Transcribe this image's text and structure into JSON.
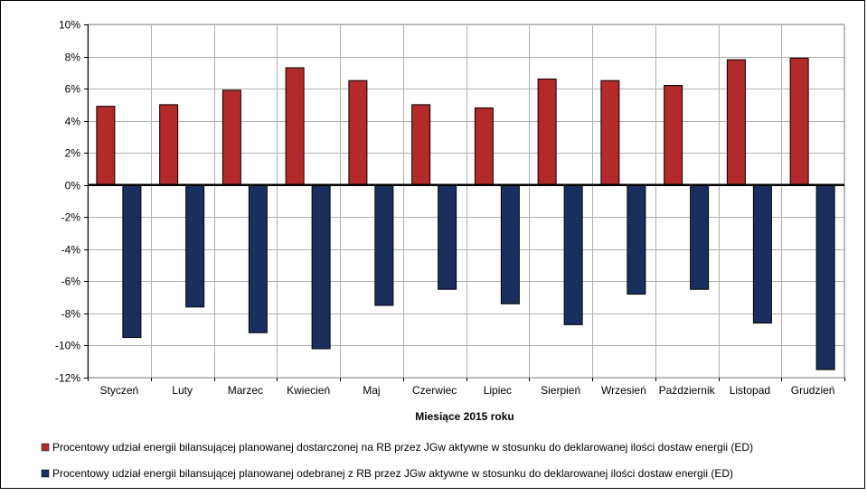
{
  "chart_data": {
    "type": "bar",
    "xlabel": "Miesiące 2015  roku",
    "ylabel": "",
    "ylim": [
      -12,
      10
    ],
    "ytick_step": 2,
    "ytick_suffix": "%",
    "grid": true,
    "legend_position": "bottom",
    "categories": [
      "Styczeń",
      "Luty",
      "Marzec",
      "Kwiecień",
      "Maj",
      "Czerwiec",
      "Lipiec",
      "Sierpień",
      "Wrzesień",
      "Październik",
      "Listopad",
      "Grudzień"
    ],
    "series": [
      {
        "name": "Procentowy udział energii bilansującej planowanej dostarczonej na RB przez JGw aktywne w stosunku do deklarowanej ilości dostaw energii (ED)",
        "color": "#b22a2a",
        "values": [
          4.9,
          5.0,
          5.9,
          7.3,
          6.5,
          5.0,
          4.8,
          6.6,
          6.5,
          6.2,
          7.8,
          7.9
        ]
      },
      {
        "name": "Procentowy udział energii bilansującej planowanej odebranej z RB przez JGw aktywne w stosunku do deklarowanej ilości dostaw energii (ED)",
        "color": "#1b2f5e",
        "values": [
          -9.5,
          -7.6,
          -9.2,
          -10.2,
          -7.5,
          -6.5,
          -7.4,
          -8.7,
          -6.8,
          -6.5,
          -8.6,
          -11.5
        ]
      }
    ]
  }
}
